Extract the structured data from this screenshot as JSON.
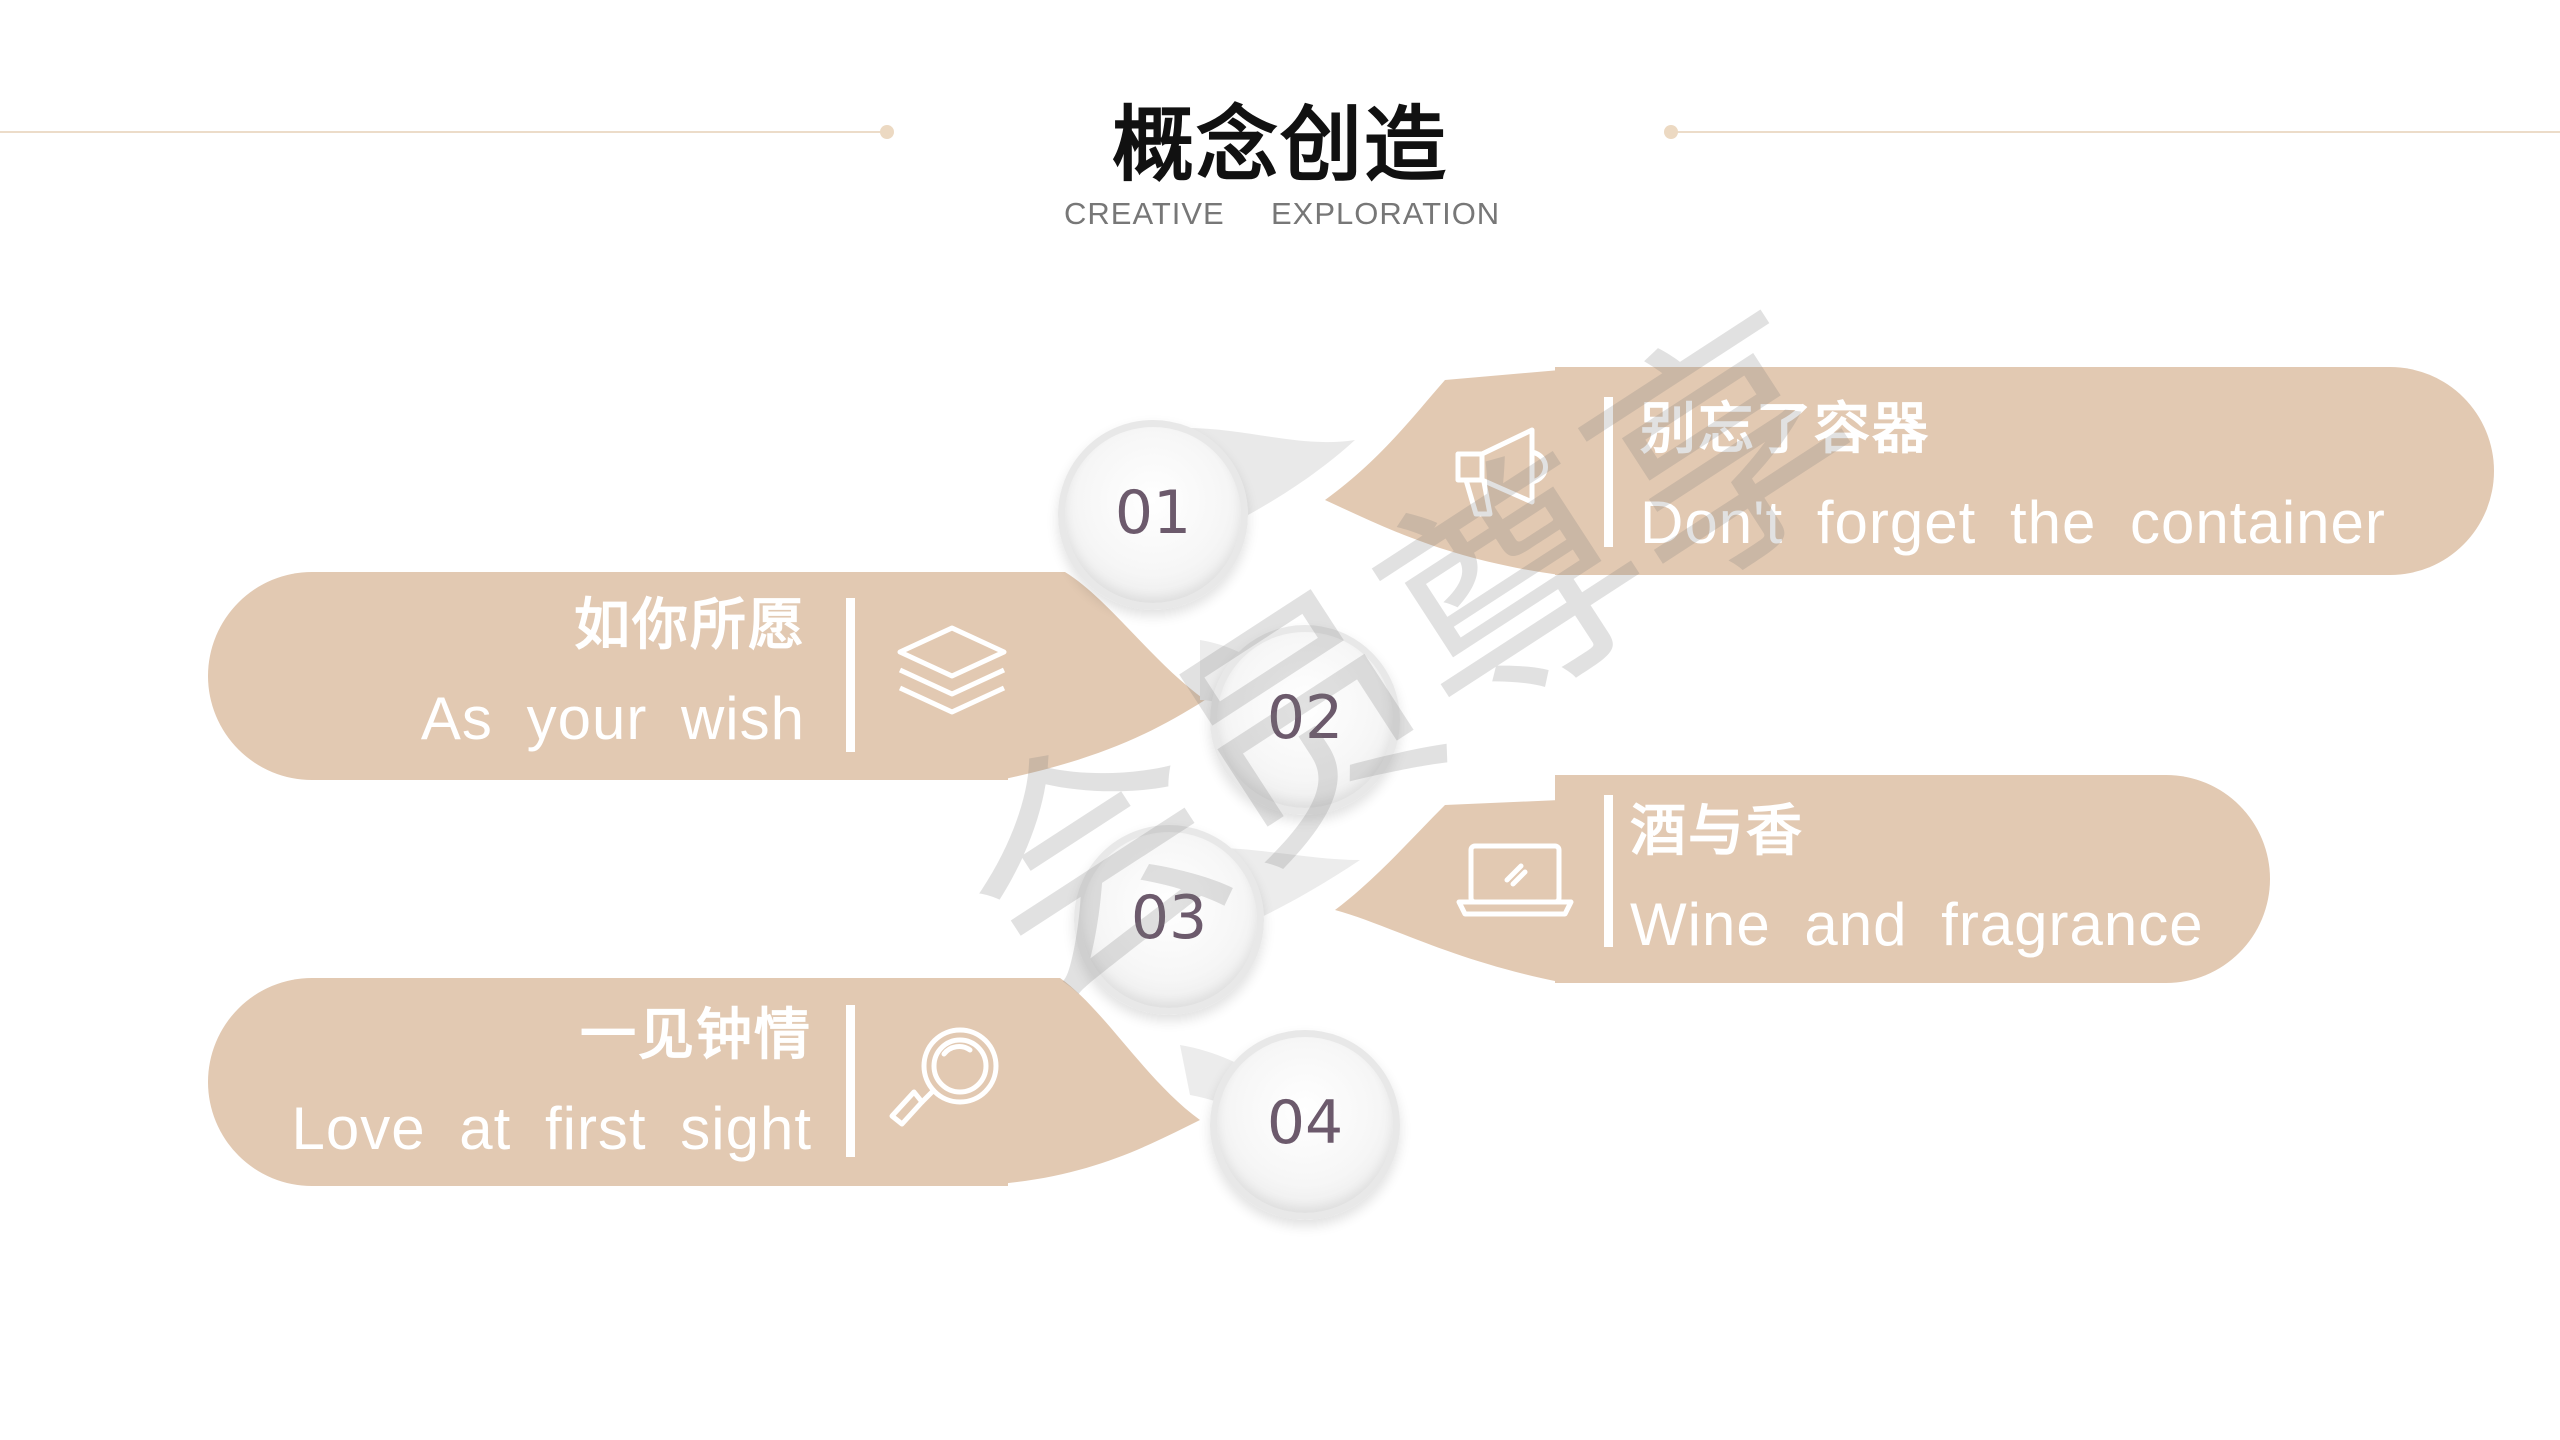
{
  "header": {
    "title": "概念创造",
    "subtitle_left": "CREATIVE",
    "subtitle_right": "EXPLORATION"
  },
  "colors": {
    "accent": "#e2c9b2",
    "line": "#ecdcc9",
    "number": "#6c5a6c"
  },
  "items": [
    {
      "number": "01",
      "title_zh": "别忘了容器",
      "title_en": "Don't forget the container",
      "icon": "megaphone-icon"
    },
    {
      "number": "02",
      "title_zh": "如你所愿",
      "title_en": "As your wish",
      "icon": "layers-icon"
    },
    {
      "number": "03",
      "title_zh": "酒与香",
      "title_en": "Wine and fragrance",
      "icon": "laptop-icon"
    },
    {
      "number": "04",
      "title_zh": "一见钟情",
      "title_en": "Love at first sight",
      "icon": "magnifier-icon"
    }
  ],
  "watermark": "会员尊享"
}
